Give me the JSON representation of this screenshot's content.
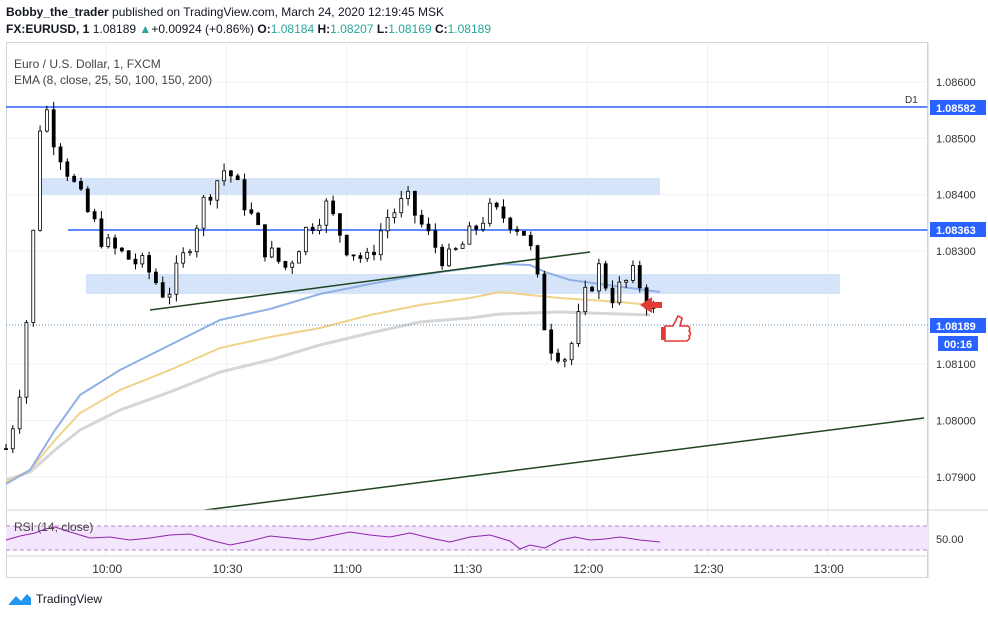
{
  "header": {
    "author": "Bobby_the_trader",
    "published_text": "published on TradingView.com, March 24, 2020 12:19:45 MSK",
    "symbol": "FX:EURUSD, 1",
    "price": "1.08189",
    "change_arrow": "▲",
    "change": "+0.00924 (+0.86%)",
    "o_label": "O:",
    "o_value": "1.08184",
    "h_label": "H:",
    "h_value": "1.08207",
    "l_label": "L:",
    "l_value": "1.08169",
    "c_label": "C:",
    "c_value": "1.08189"
  },
  "legend": {
    "line1": "Euro / U.S. Dollar, 1, FXCM",
    "line2": "EMA (8, close, 25, 50, 100, 150, 200)"
  },
  "price_axis": {
    "ticks": [
      "1.08600",
      "1.08500",
      "1.08400",
      "1.08300",
      "1.08100",
      "1.08000",
      "1.07900"
    ],
    "labels": {
      "level_top": "1.08582",
      "level_mid": "1.08363",
      "last_price": "1.08189",
      "countdown": "00:16",
      "d1": "D1"
    }
  },
  "time_axis": {
    "ticks": [
      "10:00",
      "10:30",
      "11:00",
      "11:30",
      "12:00",
      "12:30",
      "13:00"
    ]
  },
  "rsi": {
    "label": "RSI (14, close)",
    "tick": "50.00"
  },
  "footer": {
    "brand": "TradingView"
  },
  "colors": {
    "level_line": "#2962ff",
    "zone": "#d6e4fa",
    "trendline": "#1e4620",
    "bull": "#ffffff",
    "bear": "#000000",
    "ema_blue": "#8fb1e6",
    "ema_yellow": "#f2d28a",
    "ema_gray": "#d4d4d4",
    "rsi_line": "#8e24aa",
    "rsi_band": "#f3e5fb",
    "annotation": "#e53935"
  },
  "chart_data": {
    "type": "candlestick",
    "symbol": "FX:EURUSD",
    "interval": "1",
    "x_range": [
      "09:35",
      "13:25"
    ],
    "ylim": [
      1.0785,
      1.0866
    ],
    "horizontal_levels": [
      1.08582,
      1.08363
    ],
    "zones": [
      {
        "from": "09:50",
        "to": "12:17",
        "low": 1.0843,
        "high": 1.0846
      },
      {
        "from": "09:58",
        "to": "13:05",
        "low": 1.0825,
        "high": 1.0829
      }
    ],
    "trendlines": [
      {
        "x1": "10:15",
        "y1": 1.08215,
        "x2": "12:00",
        "y2": 1.08335
      },
      {
        "x1": "10:40",
        "y1": 1.07855,
        "x2": "13:25",
        "y2": 1.08025
      }
    ],
    "candles_close_path": [
      [
        "09:35",
        1.0795
      ],
      [
        "09:38",
        1.0803
      ],
      [
        "09:41",
        1.0824
      ],
      [
        "09:44",
        1.0858
      ],
      [
        "09:47",
        1.085
      ],
      [
        "09:50",
        1.0845
      ],
      [
        "09:53",
        1.084
      ],
      [
        "09:56",
        1.0836
      ],
      [
        "10:00",
        1.0831
      ],
      [
        "10:05",
        1.0829
      ],
      [
        "10:10",
        1.0827
      ],
      [
        "10:15",
        1.0822
      ],
      [
        "10:20",
        1.083
      ],
      [
        "10:25",
        1.084
      ],
      [
        "10:30",
        1.0845
      ],
      [
        "10:35",
        1.0838
      ],
      [
        "10:40",
        1.083
      ],
      [
        "10:45",
        1.0827
      ],
      [
        "10:50",
        1.0834
      ],
      [
        "10:55",
        1.0838
      ],
      [
        "11:00",
        1.0831
      ],
      [
        "11:05",
        1.0828
      ],
      [
        "11:10",
        1.0836
      ],
      [
        "11:15",
        1.0839
      ],
      [
        "11:20",
        1.0833
      ],
      [
        "11:25",
        1.0828
      ],
      [
        "11:30",
        1.0832
      ],
      [
        "11:35",
        1.0837
      ],
      [
        "11:40",
        1.0836
      ],
      [
        "11:45",
        1.0833
      ],
      [
        "11:48",
        1.0823
      ],
      [
        "11:50",
        1.0814
      ],
      [
        "11:55",
        1.0811
      ],
      [
        "12:00",
        1.0823
      ],
      [
        "12:03",
        1.0827
      ],
      [
        "12:06",
        1.0822
      ],
      [
        "12:09",
        1.0824
      ],
      [
        "12:12",
        1.0826
      ],
      [
        "12:15",
        1.0821
      ],
      [
        "12:17",
        1.08189
      ]
    ],
    "ema_blue": [
      [
        "09:35",
        1.0791
      ],
      [
        "10:00",
        1.0808
      ],
      [
        "10:30",
        1.0817
      ],
      [
        "11:00",
        1.0822
      ],
      [
        "11:30",
        1.0827
      ],
      [
        "11:45",
        1.0828
      ],
      [
        "12:00",
        1.0826
      ],
      [
        "12:17",
        1.0825
      ]
    ],
    "ema_yellow": [
      [
        "09:35",
        1.0791
      ],
      [
        "10:00",
        1.0802
      ],
      [
        "10:30",
        1.0812
      ],
      [
        "11:00",
        1.0818
      ],
      [
        "11:30",
        1.0822
      ],
      [
        "11:45",
        1.0825
      ],
      [
        "12:00",
        1.0824
      ],
      [
        "12:17",
        1.0822
      ]
    ],
    "ema_gray": [
      [
        "09:35",
        1.0791
      ],
      [
        "10:00",
        1.0798
      ],
      [
        "10:30",
        1.0808
      ],
      [
        "11:00",
        1.0814
      ],
      [
        "11:30",
        1.0818
      ],
      [
        "11:45",
        1.082
      ],
      [
        "12:00",
        1.0821
      ],
      [
        "12:17",
        1.082
      ]
    ],
    "rsi_range": [
      0,
      100
    ]
  }
}
